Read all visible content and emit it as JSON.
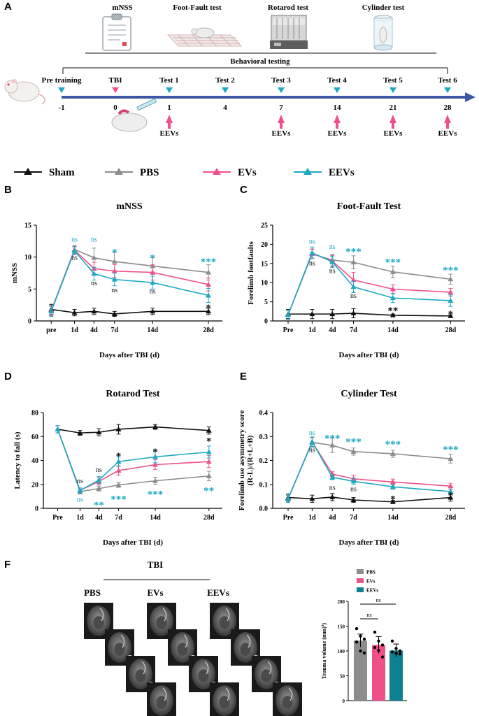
{
  "panel_letters": {
    "a": "A",
    "b": "B",
    "c": "C",
    "d": "D",
    "e": "E",
    "f": "F"
  },
  "colors": {
    "sham": "#111111",
    "pbs": "#8c8c8c",
    "evs": "#f0508a",
    "eevs": "#1ba9c3",
    "timeline": "#3d57a3",
    "arrow_pink": "#ef4f8c",
    "marker_teal": "#1ba9c3",
    "marker_pink": "#ef4f8c",
    "bar_pbs": "#8c8c8c",
    "bar_evs": "#f0508a",
    "bar_eevs": "#0f7f92"
  },
  "panel_a": {
    "tests": [
      "mNSS",
      "Foot-Fault test",
      "Rotarod test",
      "Cylinder test"
    ],
    "behavioral_label": "Behavioral testing",
    "events": [
      {
        "label": "Pre training",
        "day": "-1",
        "marker": "teal",
        "evs": false
      },
      {
        "label": "TBI",
        "day": "0",
        "marker": "pink",
        "evs": false
      },
      {
        "label": "Test 1",
        "day": "1",
        "marker": "teal",
        "evs": true
      },
      {
        "label": "Test 2",
        "day": "4",
        "marker": "teal",
        "evs": false
      },
      {
        "label": "Test 3",
        "day": "7",
        "marker": "teal",
        "evs": true
      },
      {
        "label": "Test 4",
        "day": "14",
        "marker": "teal",
        "evs": true
      },
      {
        "label": "Test 5",
        "day": "21",
        "marker": "teal",
        "evs": true
      },
      {
        "label": "Test 6",
        "day": "28",
        "marker": "teal",
        "evs": true
      }
    ],
    "evs_label": "EEVs"
  },
  "legend": [
    {
      "name": "Sham",
      "color": "#111111"
    },
    {
      "name": "PBS",
      "color": "#8c8c8c"
    },
    {
      "name": "EVs",
      "color": "#f0508a"
    },
    {
      "name": "EEVs",
      "color": "#1ba9c3"
    }
  ],
  "chart_data": [
    {
      "id": "B",
      "type": "line",
      "title": "mNSS",
      "xlabel": "Days after TBI (d)",
      "ylabel": "mNSS",
      "x": [
        0,
        1,
        4,
        7,
        14,
        28
      ],
      "x_ticks": [
        "pre",
        "1d",
        "4d",
        "7d",
        "14d",
        "28d"
      ],
      "ylim": [
        0,
        15
      ],
      "y_ticks": [
        0,
        5,
        10,
        15
      ],
      "series": [
        {
          "name": "Sham",
          "values": [
            1.8,
            1.3,
            1.5,
            1.1,
            1.5,
            1.5
          ],
          "errors": [
            0.8,
            0.5,
            0.5,
            0.4,
            0.5,
            0.5
          ]
        },
        {
          "name": "PBS",
          "values": [
            1.6,
            11.2,
            9.9,
            9.3,
            8.6,
            7.6
          ],
          "errors": [
            0.8,
            0.6,
            1.5,
            1.4,
            1.3,
            1.2
          ]
        },
        {
          "name": "EVs",
          "values": [
            1.6,
            11.1,
            8.2,
            7.8,
            7.6,
            5.7
          ],
          "errors": [
            0.8,
            0.6,
            1.0,
            1.0,
            1.2,
            1.0
          ]
        },
        {
          "name": "EEVs",
          "values": [
            1.5,
            11.0,
            7.4,
            6.5,
            6.0,
            4.0
          ],
          "errors": [
            0.8,
            0.6,
            1.0,
            1.0,
            1.0,
            1.1
          ]
        }
      ],
      "annotations": [
        {
          "x": 1,
          "y": 12.4,
          "text": "ns",
          "color": "#1ba9c3",
          "kind": "ns"
        },
        {
          "x": 1,
          "y": 9.6,
          "text": "ns",
          "color": "#111111",
          "kind": "ns"
        },
        {
          "x": 4,
          "y": 12.4,
          "text": "ns",
          "color": "#1ba9c3",
          "kind": "ns"
        },
        {
          "x": 4,
          "y": 5.6,
          "text": "ns",
          "color": "#111111",
          "kind": "ns"
        },
        {
          "x": 7,
          "y": 10.9,
          "text": "*",
          "color": "#1ba9c3",
          "kind": "star"
        },
        {
          "x": 7,
          "y": 4.5,
          "text": "ns",
          "color": "#111111",
          "kind": "ns"
        },
        {
          "x": 14,
          "y": 10.0,
          "text": "*",
          "color": "#1ba9c3",
          "kind": "star"
        },
        {
          "x": 14,
          "y": 4.3,
          "text": "ns",
          "color": "#111111",
          "kind": "ns"
        },
        {
          "x": 28,
          "y": 9.4,
          "text": "***",
          "color": "#1ba9c3",
          "kind": "star"
        },
        {
          "x": 28,
          "y": 2.2,
          "text": "*",
          "color": "#111111",
          "kind": "star"
        }
      ]
    },
    {
      "id": "C",
      "type": "line",
      "title": "Foot-Fault Test",
      "xlabel": "Days after TBI (d)",
      "ylabel": "Forelimb footfaults",
      "x": [
        0,
        1,
        4,
        7,
        14,
        28
      ],
      "x_ticks": [
        "Pre",
        "1d",
        "4d",
        "7d",
        "14d",
        "28d"
      ],
      "ylim": [
        0,
        25
      ],
      "y_ticks": [
        0,
        5,
        10,
        15,
        20,
        25
      ],
      "series": [
        {
          "name": "Sham",
          "values": [
            1.8,
            1.8,
            1.8,
            2.0,
            1.5,
            1.3
          ],
          "errors": [
            1.2,
            1.2,
            1.2,
            1.2,
            0.3,
            0.3
          ]
        },
        {
          "name": "PBS",
          "values": [
            1.6,
            17.5,
            15.9,
            15.3,
            12.8,
            10.9
          ],
          "errors": [
            1.2,
            1.2,
            1.5,
            1.7,
            1.5,
            1.3
          ]
        },
        {
          "name": "EVs",
          "values": [
            1.6,
            17.6,
            15.6,
            10.7,
            8.3,
            7.5
          ],
          "errors": [
            1.2,
            1.2,
            1.5,
            2.0,
            1.2,
            1.0
          ]
        },
        {
          "name": "EEVs",
          "values": [
            1.6,
            17.8,
            15.4,
            8.9,
            6.0,
            5.3
          ],
          "errors": [
            1.2,
            1.5,
            1.5,
            1.5,
            1.2,
            1.5
          ]
        }
      ],
      "annotations": [
        {
          "x": 1,
          "y": 20.2,
          "text": "ns",
          "color": "#1ba9c3",
          "kind": "ns"
        },
        {
          "x": 1,
          "y": 14.5,
          "text": "ns",
          "color": "#111111",
          "kind": "ns"
        },
        {
          "x": 4,
          "y": 18.8,
          "text": "ns",
          "color": "#1ba9c3",
          "kind": "ns"
        },
        {
          "x": 4,
          "y": 12.5,
          "text": "ns",
          "color": "#111111",
          "kind": "ns"
        },
        {
          "x": 7,
          "y": 18.3,
          "text": "***",
          "color": "#1ba9c3",
          "kind": "star"
        },
        {
          "x": 7,
          "y": 6.0,
          "text": "ns",
          "color": "#111111",
          "kind": "ns"
        },
        {
          "x": 14,
          "y": 15.6,
          "text": "***",
          "color": "#1ba9c3",
          "kind": "star"
        },
        {
          "x": 14,
          "y": 2.9,
          "text": "**",
          "color": "#111111",
          "kind": "star"
        },
        {
          "x": 28,
          "y": 13.5,
          "text": "***",
          "color": "#1ba9c3",
          "kind": "star"
        },
        {
          "x": 28,
          "y": 2.0,
          "text": "*",
          "color": "#111111",
          "kind": "star"
        }
      ]
    },
    {
      "id": "D",
      "type": "line",
      "title": "Rotarod Test",
      "xlabel": "Days after TBI (d)",
      "ylabel": "Latency to fall (s)",
      "x": [
        0,
        1,
        4,
        7,
        14,
        28
      ],
      "x_ticks": [
        "Pre",
        "1d",
        "4d",
        "7d",
        "14d",
        "28d"
      ],
      "ylim": [
        0,
        80
      ],
      "y_ticks": [
        0,
        20,
        40,
        60,
        80
      ],
      "series": [
        {
          "name": "Sham",
          "values": [
            66,
            63,
            63.5,
            66,
            68,
            65
          ],
          "errors": [
            3,
            2,
            3,
            4,
            2,
            3
          ]
        },
        {
          "name": "PBS",
          "values": [
            66,
            14,
            16.5,
            19.5,
            23,
            27
          ],
          "errors": [
            3,
            2,
            2,
            2,
            3,
            4
          ]
        },
        {
          "name": "EVs",
          "values": [
            66,
            15,
            22.5,
            31.5,
            36.5,
            39
          ],
          "errors": [
            3,
            2,
            3,
            4,
            4,
            5
          ]
        },
        {
          "name": "EEVs",
          "values": [
            66,
            15,
            23.5,
            39,
            43,
            47
          ],
          "errors": [
            3,
            2,
            3,
            4,
            5,
            5
          ]
        }
      ],
      "annotations": [
        {
          "x": 1,
          "y": 21.0,
          "text": "ns",
          "color": "#111111",
          "kind": "ns"
        },
        {
          "x": 1,
          "y": 5.5,
          "text": "ns",
          "color": "#1ba9c3",
          "kind": "ns"
        },
        {
          "x": 4,
          "y": 30.5,
          "text": "ns",
          "color": "#111111",
          "kind": "ns"
        },
        {
          "x": 4,
          "y": 3.5,
          "text": "**",
          "color": "#1ba9c3",
          "kind": "star"
        },
        {
          "x": 7,
          "y": 44.5,
          "text": "*",
          "color": "#111111",
          "kind": "star"
        },
        {
          "x": 7,
          "y": 8.5,
          "text": "***",
          "color": "#1ba9c3",
          "kind": "star"
        },
        {
          "x": 14,
          "y": 48.0,
          "text": "*",
          "color": "#111111",
          "kind": "star"
        },
        {
          "x": 14,
          "y": 12.5,
          "text": "***",
          "color": "#1ba9c3",
          "kind": "star"
        },
        {
          "x": 28,
          "y": 57.0,
          "text": "*",
          "color": "#111111",
          "kind": "star"
        },
        {
          "x": 28,
          "y": 15.5,
          "text": "**",
          "color": "#1ba9c3",
          "kind": "star"
        }
      ]
    },
    {
      "id": "E",
      "type": "line",
      "title": "Cylinder Test",
      "xlabel": "Days after TBI (d)",
      "ylabel_lines": [
        "Forelimb use asymmetry score",
        "(R-L)/(R+L+B)"
      ],
      "x": [
        0,
        1,
        4,
        7,
        14,
        28
      ],
      "x_ticks": [
        "Pre",
        "1d",
        "4d",
        "7d",
        "14d",
        "28d"
      ],
      "ylim": [
        0.0,
        0.4
      ],
      "y_ticks": [
        "0.0",
        "0.1",
        "0.2",
        "0.3",
        "0.4"
      ],
      "series": [
        {
          "name": "Sham",
          "values": [
            0.045,
            0.04,
            0.047,
            0.035,
            0.027,
            0.045
          ],
          "errors": [
            0.015,
            0.015,
            0.015,
            0.01,
            0.006,
            0.015
          ]
        },
        {
          "name": "PBS",
          "values": [
            0.04,
            0.275,
            0.263,
            0.237,
            0.228,
            0.207
          ],
          "errors": [
            0.015,
            0.02,
            0.03,
            0.015,
            0.015,
            0.018
          ]
        },
        {
          "name": "EVs",
          "values": [
            0.04,
            0.278,
            0.143,
            0.123,
            0.11,
            0.093
          ],
          "errors": [
            0.015,
            0.02,
            0.01,
            0.015,
            0.012,
            0.012
          ]
        },
        {
          "name": "EEVs",
          "values": [
            0.04,
            0.278,
            0.13,
            0.113,
            0.09,
            0.07
          ],
          "errors": [
            0.015,
            0.02,
            0.01,
            0.012,
            0.01,
            0.01
          ]
        }
      ],
      "annotations": [
        {
          "x": 1,
          "y": 0.307,
          "text": "ns",
          "color": "#1ba9c3",
          "kind": "ns"
        },
        {
          "x": 1,
          "y": 0.235,
          "text": "ns",
          "color": "#111111",
          "kind": "ns"
        },
        {
          "x": 4,
          "y": 0.296,
          "text": "***",
          "color": "#1ba9c3",
          "kind": "star"
        },
        {
          "x": 4,
          "y": 0.077,
          "text": "ns",
          "color": "#111111",
          "kind": "ns"
        },
        {
          "x": 7,
          "y": 0.282,
          "text": "***",
          "color": "#1ba9c3",
          "kind": "star"
        },
        {
          "x": 7,
          "y": 0.071,
          "text": "ns",
          "color": "#111111",
          "kind": "ns"
        },
        {
          "x": 14,
          "y": 0.272,
          "text": "***",
          "color": "#1ba9c3",
          "kind": "star"
        },
        {
          "x": 14,
          "y": 0.042,
          "text": "*",
          "color": "#111111",
          "kind": "star"
        },
        {
          "x": 28,
          "y": 0.25,
          "text": "***",
          "color": "#1ba9c3",
          "kind": "star"
        },
        {
          "x": 28,
          "y": 0.057,
          "text": "*",
          "color": "#111111",
          "kind": "star"
        }
      ]
    },
    {
      "id": "F",
      "type": "bar",
      "title": "",
      "ylabel": "Trauma volume (mm3)",
      "categories": [
        "PBS",
        "EVs",
        "EEVs"
      ],
      "values": [
        121,
        112,
        101
      ],
      "errors": [
        13,
        17,
        13
      ],
      "points": [
        [
          145,
          130,
          124,
          118,
          100,
          96
        ],
        [
          138,
          120,
          112,
          107,
          101,
          88
        ],
        [
          120,
          105,
          100,
          98,
          95,
          94
        ]
      ],
      "ylim": [
        0,
        200
      ],
      "y_ticks": [
        0,
        50,
        100,
        150,
        200
      ],
      "legend": [
        "PBS",
        "EVs",
        "EEVs"
      ],
      "comparisons": [
        {
          "from": "PBS",
          "to": "EVs",
          "text": "ns"
        },
        {
          "from": "PBS",
          "to": "EEVs",
          "text": "ns"
        }
      ]
    }
  ],
  "panel_f": {
    "group_label": "TBI",
    "image_labels": [
      "PBS",
      "EVs",
      "EEVs"
    ]
  }
}
